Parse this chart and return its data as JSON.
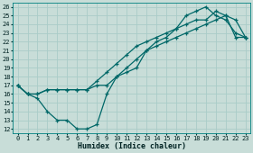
{
  "xlabel": "Humidex (Indice chaleur)",
  "ylabel": "",
  "bg_color": "#c8ddd8",
  "grid_color": "#aaccc8",
  "line_color": "#006868",
  "xlim": [
    -0.5,
    23.5
  ],
  "ylim": [
    11.5,
    26.5
  ],
  "xticks": [
    0,
    1,
    2,
    3,
    4,
    5,
    6,
    7,
    8,
    9,
    10,
    11,
    12,
    13,
    14,
    15,
    16,
    17,
    18,
    19,
    20,
    21,
    22,
    23
  ],
  "yticks": [
    12,
    13,
    14,
    15,
    16,
    17,
    18,
    19,
    20,
    21,
    22,
    23,
    24,
    25,
    26
  ],
  "line1_x": [
    0,
    1,
    2,
    3,
    4,
    5,
    6,
    7,
    8,
    9,
    10,
    11,
    12,
    13,
    14,
    15,
    16,
    17,
    18,
    19,
    20,
    21,
    22,
    23
  ],
  "line1_y": [
    17.0,
    16.0,
    16.0,
    16.5,
    16.5,
    16.5,
    16.5,
    16.5,
    17.0,
    17.0,
    18.0,
    19.0,
    20.0,
    21.0,
    21.5,
    22.0,
    22.5,
    23.0,
    23.5,
    24.0,
    24.5,
    25.0,
    22.5,
    22.5
  ],
  "line2_x": [
    0,
    1,
    2,
    3,
    4,
    5,
    6,
    7,
    8,
    9,
    10,
    11,
    12,
    13,
    14,
    15,
    16,
    17,
    18,
    19,
    20,
    21,
    22,
    23
  ],
  "line2_y": [
    17.0,
    16.0,
    15.5,
    14.0,
    13.0,
    13.0,
    12.0,
    12.0,
    12.5,
    16.0,
    18.0,
    18.5,
    19.0,
    21.0,
    22.0,
    22.5,
    23.5,
    25.0,
    25.5,
    26.0,
    25.0,
    24.5,
    23.0,
    22.5
  ],
  "line3_x": [
    0,
    1,
    2,
    3,
    4,
    5,
    6,
    7,
    8,
    9,
    10,
    11,
    12,
    13,
    14,
    15,
    16,
    17,
    18,
    19,
    20,
    21,
    22,
    23
  ],
  "line3_y": [
    17.0,
    16.0,
    16.0,
    16.5,
    16.5,
    16.5,
    16.5,
    16.5,
    17.5,
    18.5,
    19.5,
    20.5,
    21.5,
    22.0,
    22.5,
    23.0,
    23.5,
    24.0,
    24.5,
    24.5,
    25.5,
    25.0,
    24.5,
    22.5
  ],
  "xlabel_fontsize": 6.0,
  "tick_fontsize": 5.0
}
